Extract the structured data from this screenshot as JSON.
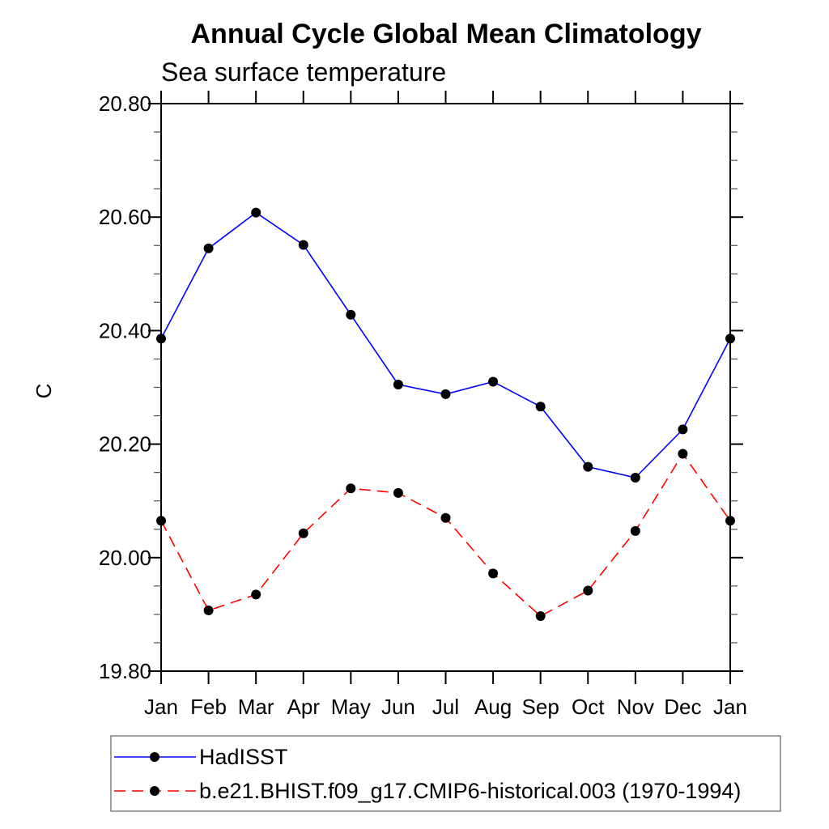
{
  "page": {
    "background": "#ffffff",
    "text_color": "#000000"
  },
  "chart_data": {
    "type": "line",
    "title": "Annual Cycle Global Mean Climatology",
    "subtitle": "Sea surface temperature",
    "xlabel": "",
    "ylabel": "C",
    "categories": [
      "Jan",
      "Feb",
      "Mar",
      "Apr",
      "May",
      "Jun",
      "Jul",
      "Aug",
      "Sep",
      "Oct",
      "Nov",
      "Dec",
      "Jan"
    ],
    "ylim": [
      19.8,
      20.8
    ],
    "y_major_step": 0.2,
    "y_minor_step": 0.05,
    "y_tick_labels_ascending": [
      "19.80",
      "20.00",
      "20.20",
      "20.40",
      "20.60",
      "20.80"
    ],
    "grid": false,
    "legend_position": "bottom-left",
    "series": [
      {
        "name": "HadISST",
        "color": "#0000ff",
        "line_style": "solid",
        "marker": "filled-circle",
        "marker_color": "#000000",
        "values": [
          20.386,
          20.545,
          20.608,
          20.551,
          20.428,
          20.305,
          20.288,
          20.31,
          20.266,
          20.16,
          20.141,
          20.226,
          20.386
        ]
      },
      {
        "name": "b.e21.BHIST.f09_g17.CMIP6-historical.003 (1970-1994)",
        "color": "#ff0000",
        "line_style": "dashed",
        "marker": "filled-circle",
        "marker_color": "#000000",
        "values": [
          20.065,
          19.907,
          19.935,
          20.043,
          20.122,
          20.114,
          20.07,
          19.972,
          19.897,
          19.942,
          20.047,
          20.183,
          20.065
        ]
      }
    ]
  },
  "colors": {
    "axis": "#000000",
    "minor_tick": "#555555",
    "legend_border": "#808080",
    "series1": "#0000ff",
    "series2": "#ff0000",
    "marker": "#000000"
  }
}
